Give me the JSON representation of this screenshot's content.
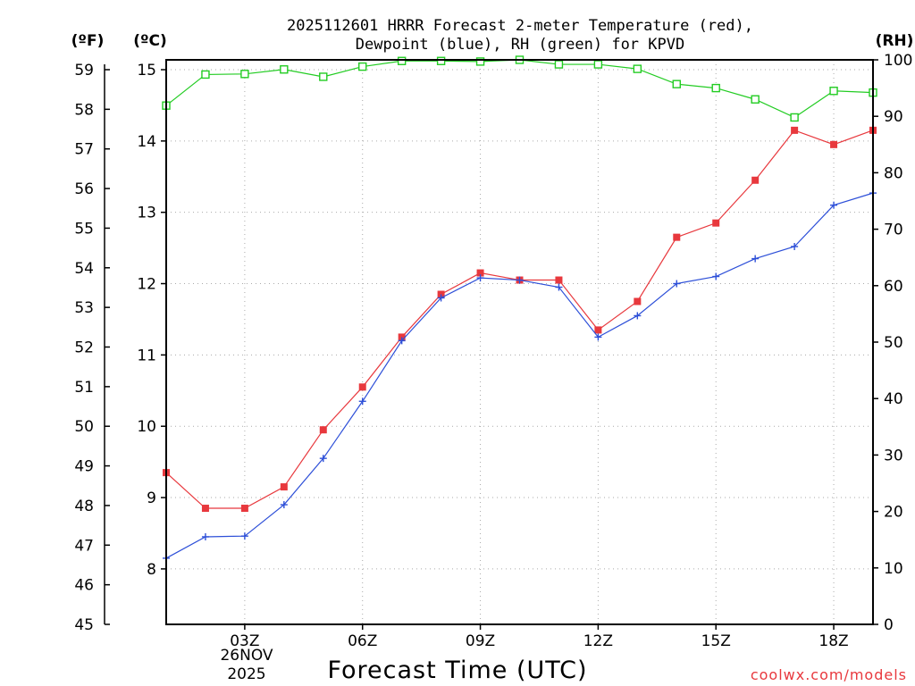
{
  "chart_data": {
    "type": "line",
    "title_line1": "2025112601 HRRR Forecast 2-meter Temperature (red),",
    "title_line2": "Dewpoint (blue), RH (green) for KPVD",
    "xlabel": "Forecast Time (UTC)",
    "x_hours": [
      1,
      2,
      3,
      4,
      5,
      6,
      7,
      8,
      9,
      10,
      11,
      12,
      13,
      14,
      15,
      16,
      17,
      18,
      19
    ],
    "x_range": [
      1,
      19
    ],
    "x_ticks": [
      {
        "hour": 3,
        "label": "03Z"
      },
      {
        "hour": 6,
        "label": "06Z"
      },
      {
        "hour": 9,
        "label": "09Z"
      },
      {
        "hour": 12,
        "label": "12Z"
      },
      {
        "hour": 15,
        "label": "15Z"
      },
      {
        "hour": 18,
        "label": "18Z"
      }
    ],
    "date_label_line1": "26NOV",
    "date_label_line2": "2025",
    "left_axis_f": {
      "unit": "(ºF)",
      "range": [
        45,
        59
      ],
      "ticks": [
        45,
        46,
        47,
        48,
        49,
        50,
        51,
        52,
        53,
        54,
        55,
        56,
        57,
        58,
        59
      ]
    },
    "left_axis_c": {
      "unit": "(ºC)",
      "range": [
        7.22,
        15.17
      ],
      "ticks": [
        8,
        9,
        10,
        11,
        12,
        13,
        14,
        15
      ]
    },
    "right_axis_rh": {
      "unit": "(RH)",
      "range": [
        0,
        100
      ],
      "ticks": [
        0,
        10,
        20,
        30,
        40,
        50,
        60,
        70,
        80,
        90,
        100
      ]
    },
    "series": [
      {
        "name": "Temperature",
        "unit": "C",
        "color": "#e8383d",
        "marker": "filled-square",
        "values": [
          9.35,
          8.85,
          8.85,
          9.15,
          9.95,
          10.55,
          11.25,
          11.85,
          12.15,
          12.05,
          12.05,
          11.35,
          11.75,
          12.65,
          12.85,
          13.45,
          14.15,
          13.95,
          14.15
        ]
      },
      {
        "name": "Dewpoint",
        "unit": "C",
        "color": "#2d4fd8",
        "marker": "plus",
        "values": [
          8.15,
          8.45,
          8.46,
          8.9,
          9.55,
          10.35,
          11.2,
          11.8,
          12.08,
          12.05,
          11.95,
          11.25,
          11.55,
          12.0,
          12.1,
          12.35,
          12.52,
          13.1,
          13.27
        ]
      },
      {
        "name": "RH",
        "unit": "%",
        "color": "#22cc22",
        "marker": "open-square",
        "values": [
          91.9,
          97.4,
          97.5,
          98.3,
          97.0,
          98.8,
          99.8,
          99.8,
          99.7,
          100.0,
          99.2,
          99.2,
          98.4,
          95.7,
          95.0,
          93.0,
          89.8,
          94.5,
          94.2
        ]
      }
    ]
  },
  "credit": "coolwx.com/models"
}
